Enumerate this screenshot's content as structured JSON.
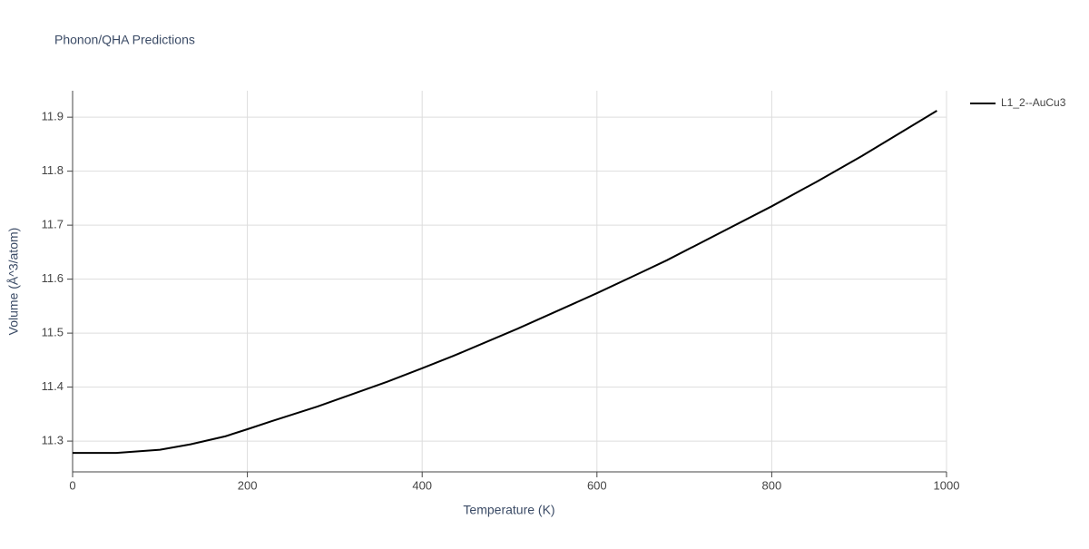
{
  "chart_data": {
    "type": "line",
    "title": "Phonon/QHA Predictions",
    "x_label": "Temperature (K)",
    "y_label": "Volume (Å^3/atom)",
    "x": [
      0,
      50,
      100,
      135,
      175,
      200,
      228,
      280,
      360,
      400,
      436,
      509,
      600,
      650,
      680,
      800,
      852,
      903,
      989
    ],
    "series": [
      {
        "name": "L1_2--AuCu3",
        "color": "#000000",
        "values": [
          11.278,
          11.278,
          11.284,
          11.294,
          11.309,
          11.322,
          11.337,
          11.364,
          11.41,
          11.435,
          11.458,
          11.508,
          11.574,
          11.612,
          11.635,
          11.735,
          11.781,
          11.828,
          11.912
        ]
      }
    ],
    "xlim": [
      0,
      1000
    ],
    "xticks": [
      0,
      200,
      400,
      600,
      800,
      1000
    ],
    "ylim": [
      11.243,
      11.949
    ],
    "yticks": [
      11.3,
      11.4,
      11.5,
      11.6,
      11.7,
      11.8,
      11.9
    ],
    "grid": true,
    "legend": "right"
  }
}
